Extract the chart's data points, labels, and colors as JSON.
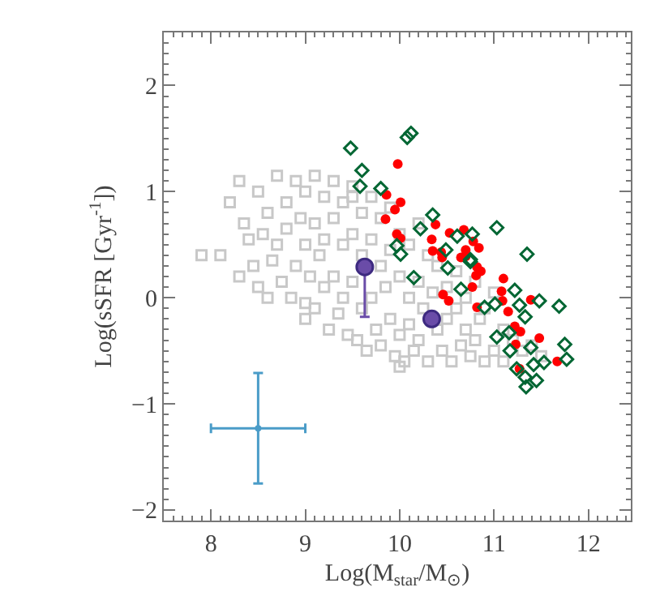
{
  "chart_data": {
    "type": "scatter",
    "xlabel": "Log(M$_{star}$/M$_{⊙}$)",
    "ylabel": "Log(sSFR [Gyr$^{-1}$])",
    "xlim": [
      7.5,
      12.45
    ],
    "ylim": [
      -2.1,
      2.5
    ],
    "xticks": [
      8,
      9,
      10,
      11,
      12
    ],
    "yticks": [
      {
        "value": -2,
        "label": "−2"
      },
      {
        "value": -1,
        "label": "−1"
      },
      0,
      1,
      2
    ],
    "series": [
      {
        "color": "#c8c8c8",
        "marker": "square",
        "x": [
          7.9,
          8.1,
          8.3,
          8.35,
          8.4,
          8.45,
          8.5,
          8.5,
          8.55,
          8.6,
          8.6,
          8.65,
          8.7,
          8.7,
          8.75,
          8.8,
          8.8,
          8.85,
          8.9,
          8.9,
          8.95,
          9.0,
          9.0,
          9.0,
          9.05,
          9.1,
          9.1,
          9.1,
          9.15,
          9.2,
          9.2,
          9.2,
          9.25,
          9.3,
          9.3,
          9.3,
          9.35,
          9.4,
          9.4,
          9.4,
          9.45,
          9.5,
          9.5,
          9.5,
          9.55,
          9.6,
          9.6,
          9.6,
          9.65,
          9.7,
          9.7,
          9.7,
          9.75,
          9.8,
          9.8,
          9.8,
          9.85,
          9.9,
          9.9,
          9.9,
          9.95,
          10.0,
          10.0,
          10.0,
          10.05,
          10.1,
          10.1,
          10.1,
          10.15,
          10.2,
          10.2,
          10.2,
          10.25,
          10.3,
          10.3,
          10.35,
          10.4,
          10.4,
          10.45,
          10.5,
          10.5,
          10.55,
          10.6,
          10.6,
          10.65,
          10.7,
          10.7,
          10.75,
          10.8,
          10.8,
          10.85,
          10.9,
          10.9,
          11.0,
          11.0,
          11.1,
          11.1,
          11.2,
          11.3,
          11.4,
          11.5,
          8.2,
          8.3,
          9.0,
          9.5,
          10.0
        ],
        "values": [
          0.4,
          0.4,
          1.1,
          0.7,
          0.55,
          0.3,
          1.0,
          0.1,
          0.6,
          0.8,
          0.0,
          0.35,
          1.15,
          0.5,
          0.15,
          0.9,
          0.65,
          0.0,
          1.1,
          0.3,
          0.75,
          1.0,
          0.5,
          -0.2,
          0.2,
          1.15,
          0.7,
          -0.1,
          0.4,
          0.95,
          0.55,
          0.1,
          -0.3,
          1.1,
          0.75,
          0.2,
          -0.15,
          0.9,
          0.5,
          0.0,
          -0.35,
          1.05,
          0.6,
          0.15,
          -0.4,
          0.8,
          0.4,
          -0.1,
          -0.5,
          0.95,
          0.55,
          0.0,
          -0.3,
          0.75,
          0.3,
          -0.45,
          0.1,
          0.85,
          0.45,
          -0.2,
          -0.55,
          0.6,
          0.2,
          -0.35,
          -0.6,
          0.5,
          0.0,
          -0.25,
          -0.5,
          0.7,
          0.15,
          -0.4,
          -0.1,
          0.4,
          -0.6,
          0.05,
          0.3,
          -0.3,
          -0.5,
          0.1,
          -0.2,
          -0.6,
          0.25,
          -0.1,
          -0.45,
          0.0,
          -0.3,
          -0.55,
          0.15,
          -0.4,
          -0.2,
          -0.1,
          -0.6,
          0.05,
          -0.5,
          -0.3,
          -0.6,
          -0.4,
          -0.5,
          -0.45,
          -0.55,
          0.9,
          0.2,
          -0.05,
          0.95,
          -0.65
        ]
      },
      {
        "color": "#ff0000",
        "marker": "circle",
        "x": [
          9.98,
          9.86,
          10.01,
          9.95,
          9.85,
          9.97,
          10.01,
          10.38,
          10.34,
          10.53,
          10.68,
          10.35,
          10.44,
          10.78,
          10.84,
          10.7,
          10.65,
          10.82,
          10.45,
          10.7,
          10.86,
          10.81,
          11.1,
          10.77,
          10.46,
          10.52,
          11.08,
          11.09,
          11.39,
          10.82,
          11.15,
          11.22,
          11.28,
          11.48,
          11.23,
          11.67,
          11.27
        ],
        "values": [
          1.26,
          0.97,
          0.9,
          0.83,
          0.74,
          0.6,
          0.56,
          0.69,
          0.55,
          0.61,
          0.64,
          0.44,
          0.43,
          0.53,
          0.47,
          0.45,
          0.38,
          0.29,
          0.38,
          0.39,
          0.25,
          0.21,
          0.18,
          0.1,
          0.03,
          -0.03,
          0.06,
          -0.03,
          -0.02,
          -0.09,
          -0.13,
          -0.27,
          -0.32,
          -0.38,
          -0.44,
          -0.6,
          -0.67
        ]
      },
      {
        "color": "#006633",
        "marker": "diamond",
        "x": [
          9.48,
          10.08,
          10.12,
          9.6,
          9.58,
          9.8,
          10.35,
          11.03,
          10.22,
          10.61,
          10.77,
          9.97,
          10.01,
          11.35,
          10.49,
          10.75,
          10.15,
          10.51,
          10.65,
          10.75,
          11.22,
          10.9,
          11.01,
          11.27,
          11.48,
          11.69,
          11.33,
          11.03,
          11.16,
          11.17,
          11.39,
          11.75,
          11.77,
          11.53,
          11.42,
          11.24,
          11.33,
          11.45,
          11.34
        ],
        "values": [
          1.41,
          1.51,
          1.55,
          1.2,
          1.05,
          1.03,
          0.78,
          0.66,
          0.65,
          0.58,
          0.6,
          0.49,
          0.41,
          0.41,
          0.45,
          0.36,
          0.19,
          0.28,
          0.08,
          0.34,
          0.07,
          -0.09,
          -0.06,
          -0.07,
          -0.03,
          -0.08,
          -0.18,
          -0.37,
          -0.33,
          -0.5,
          -0.47,
          -0.44,
          -0.58,
          -0.61,
          -0.63,
          -0.67,
          -0.75,
          -0.78,
          -0.84
        ]
      },
      {
        "color": "#6a4ca8",
        "marker": "circle",
        "x": [
          9.63,
          10.34
        ],
        "values": [
          0.29,
          -0.2
        ],
        "errors": [
          [
            -0.18,
            0.29
          ],
          null
        ]
      },
      {
        "color": "#4a9cc8",
        "marker": "circle",
        "x": [
          8.5
        ],
        "values": [
          -1.23
        ],
        "errors": [
          0.52
        ],
        "xerrors": [
          0.5
        ]
      }
    ]
  }
}
